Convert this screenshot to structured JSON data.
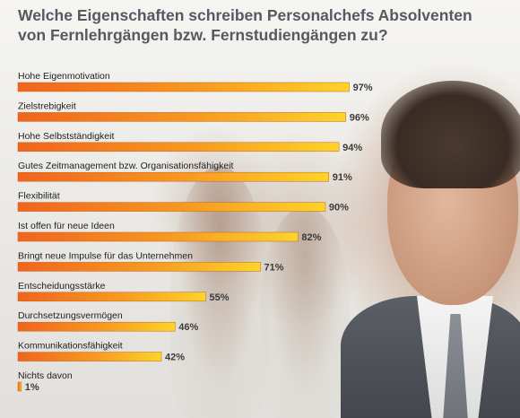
{
  "title_line1": "Welche Eigenschaften schreiben Personalchefs Absolventen",
  "title_line2": "von Fernlehrgängen bzw. Fernstudiengängen zu?",
  "chart_data": {
    "type": "bar",
    "orientation": "horizontal",
    "title": "Welche Eigenschaften schreiben Personalchefs Absolventen von Fernlehrgängen bzw. Fernstudiengängen zu?",
    "categories": [
      "Hohe Eigenmotivation",
      "Zielstrebigkeit",
      "Hohe Selbstständigkeit",
      "Gutes Zeitmanagement bzw. Organisationsfähigkeit",
      "Flexibilität",
      "Ist offen für neue Ideen",
      "Bringt neue Impulse für das Unternehmen",
      "Entscheidungsstärke",
      "Durchsetzungsvermögen",
      "Kommunikationsfähigkeit",
      "Nichts davon"
    ],
    "values": [
      97,
      96,
      94,
      91,
      90,
      82,
      71,
      55,
      46,
      42,
      1
    ],
    "value_suffix": "%",
    "xlim": [
      0,
      100
    ],
    "grid": false,
    "legend": false,
    "bar_colors": [
      "#f0641e",
      "#f79a20",
      "#fdd42a"
    ]
  }
}
